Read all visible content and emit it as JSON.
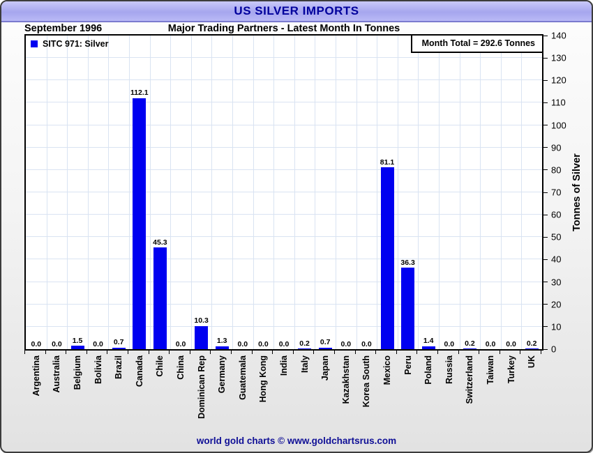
{
  "window": {
    "title": "US SILVER IMPORTS"
  },
  "header": {
    "date_label": "September 1996",
    "subtitle": "Major Trading Partners - Latest Month In Tonnes"
  },
  "legend": {
    "label": "SITC 971: Silver",
    "swatch_color": "#0000f0"
  },
  "annotation": {
    "month_total": "Month Total = 292.6 Tonnes"
  },
  "footer": {
    "credit": "world gold charts © www.goldchartsrus.com"
  },
  "colors": {
    "bar": "#0000f0",
    "title_text": "#00009c",
    "titlebar_fill": "#b0b0f2",
    "gridline": "#d9e3f2",
    "footer_text": "#0f0f96"
  },
  "chart_data": {
    "type": "bar",
    "title": "US SILVER IMPORTS",
    "subtitle": "Major Trading Partners - Latest Month In Tonnes",
    "period": "September 1996",
    "series_name": "SITC 971: Silver",
    "month_total_tonnes": 292.6,
    "categories": [
      "Argentina",
      "Australia",
      "Belgium",
      "Bolivia",
      "Brazil",
      "Canada",
      "Chile",
      "China",
      "Dominican Rep",
      "Germany",
      "Guatemala",
      "Hong Kong",
      "India",
      "Italy",
      "Japan",
      "Kazakhstan",
      "Korea South",
      "Mexico",
      "Peru",
      "Poland",
      "Russia",
      "Switzerland",
      "Taiwan",
      "Turkey",
      "UK"
    ],
    "values": [
      0.0,
      0.0,
      1.5,
      0.0,
      0.7,
      112.1,
      45.3,
      0.0,
      10.3,
      1.3,
      0.0,
      0.0,
      0.0,
      0.2,
      0.7,
      0.0,
      0.0,
      81.1,
      36.3,
      1.4,
      0.0,
      0.2,
      0.0,
      0.0,
      0.2
    ],
    "xlabel": "",
    "ylabel": "Tonnes of Silver",
    "ylim": [
      0,
      140
    ],
    "ytick_step": 10,
    "grid": true,
    "legend_position": "top-left",
    "value_labels_decimals": 1,
    "bar_color": "#0000f0"
  }
}
